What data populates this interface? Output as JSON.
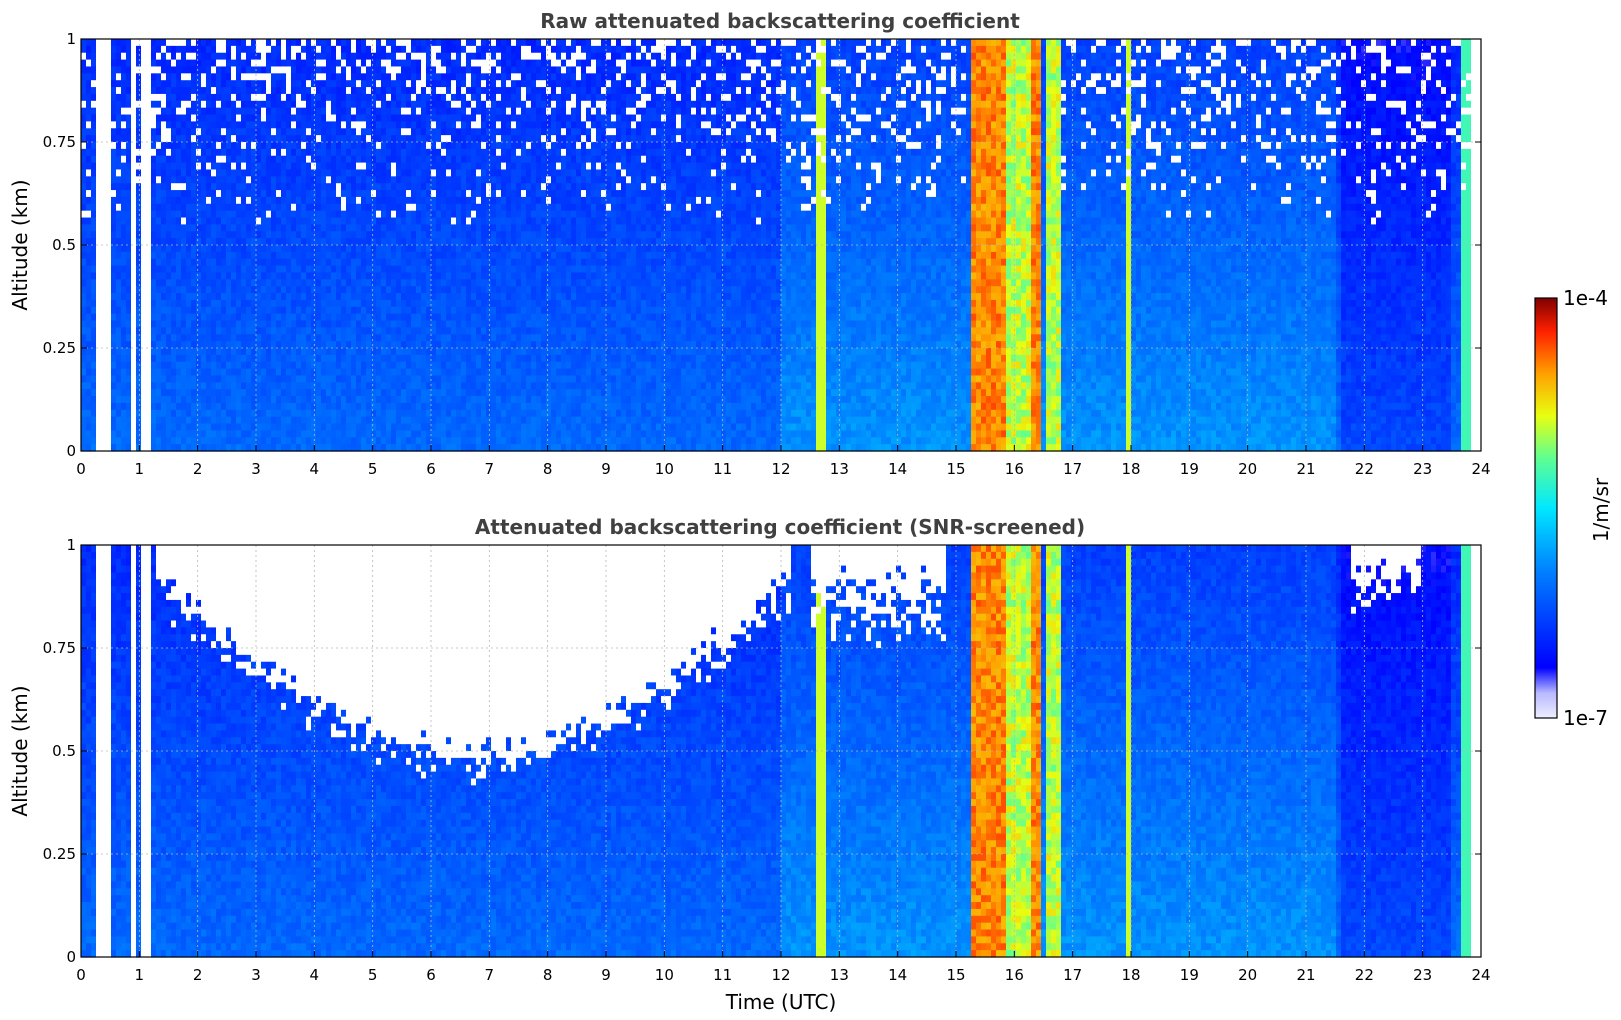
{
  "chart_data": [
    {
      "type": "heatmap",
      "title": "Raw attenuated backscattering coefficient",
      "ylabel": "Altitude (km)",
      "xlabel": "",
      "x_ticks": [
        "0",
        "1",
        "2",
        "3",
        "4",
        "5",
        "6",
        "7",
        "8",
        "9",
        "10",
        "11",
        "12",
        "13",
        "14",
        "15",
        "16",
        "17",
        "18",
        "19",
        "20",
        "21",
        "22",
        "23",
        "24"
      ],
      "y_ticks": [
        "0",
        "0.25",
        "0.5",
        "0.75",
        "1"
      ],
      "xlim": [
        0,
        24
      ],
      "ylim": [
        0,
        1
      ],
      "grid": true,
      "screened": false
    },
    {
      "type": "heatmap",
      "title": "Attenuated backscattering coefficient (SNR-screened)",
      "ylabel": "Altitude (km)",
      "xlabel": "Time (UTC)",
      "x_ticks": [
        "0",
        "1",
        "2",
        "3",
        "4",
        "5",
        "6",
        "7",
        "8",
        "9",
        "10",
        "11",
        "12",
        "13",
        "14",
        "15",
        "16",
        "17",
        "18",
        "19",
        "20",
        "21",
        "22",
        "23",
        "24"
      ],
      "y_ticks": [
        "0",
        "0.25",
        "0.5",
        "0.75",
        "1"
      ],
      "xlim": [
        0,
        24
      ],
      "ylim": [
        0,
        1
      ],
      "grid": true,
      "screened": true
    }
  ],
  "colorbar": {
    "max_label": "1e-4",
    "min_label": "1e-7",
    "unit_label": "1/m/sr",
    "scale": "log",
    "range": [
      1e-07,
      0.0001
    ],
    "colormap": "jet"
  }
}
